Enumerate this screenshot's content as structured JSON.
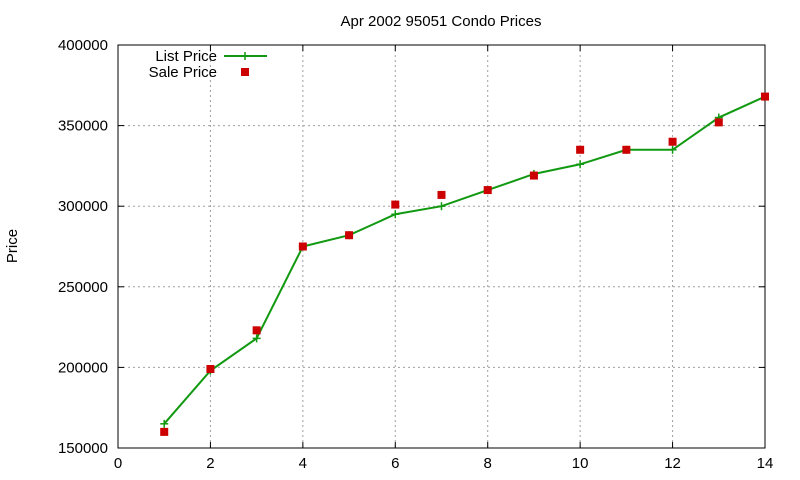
{
  "chart_data": {
    "type": "line",
    "title": "Apr 2002 95051 Condo Prices",
    "xlabel": "",
    "ylabel": "Price",
    "xlim": [
      0,
      14
    ],
    "ylim": [
      150000,
      400000
    ],
    "xticks": [
      0,
      2,
      4,
      6,
      8,
      10,
      12,
      14
    ],
    "yticks": [
      150000,
      200000,
      250000,
      300000,
      350000,
      400000
    ],
    "grid": true,
    "legend_position": "top-left",
    "series": [
      {
        "name": "List Price",
        "style": "line-with-plus-markers",
        "color": "#119911",
        "x": [
          1,
          2,
          3,
          4,
          5,
          6,
          7,
          8,
          9,
          10,
          11,
          12,
          13,
          14
        ],
        "y": [
          165000,
          198000,
          218000,
          275000,
          282000,
          295000,
          300000,
          310000,
          320000,
          326000,
          335000,
          335000,
          355000,
          368000
        ]
      },
      {
        "name": "Sale Price",
        "style": "square-markers",
        "color": "#cc0000",
        "x": [
          1,
          2,
          3,
          4,
          5,
          6,
          7,
          8,
          9,
          10,
          11,
          12,
          13,
          14
        ],
        "y": [
          160000,
          199000,
          223000,
          275000,
          282000,
          301000,
          307000,
          310000,
          319000,
          335000,
          335000,
          340000,
          352000,
          368000
        ]
      }
    ]
  }
}
